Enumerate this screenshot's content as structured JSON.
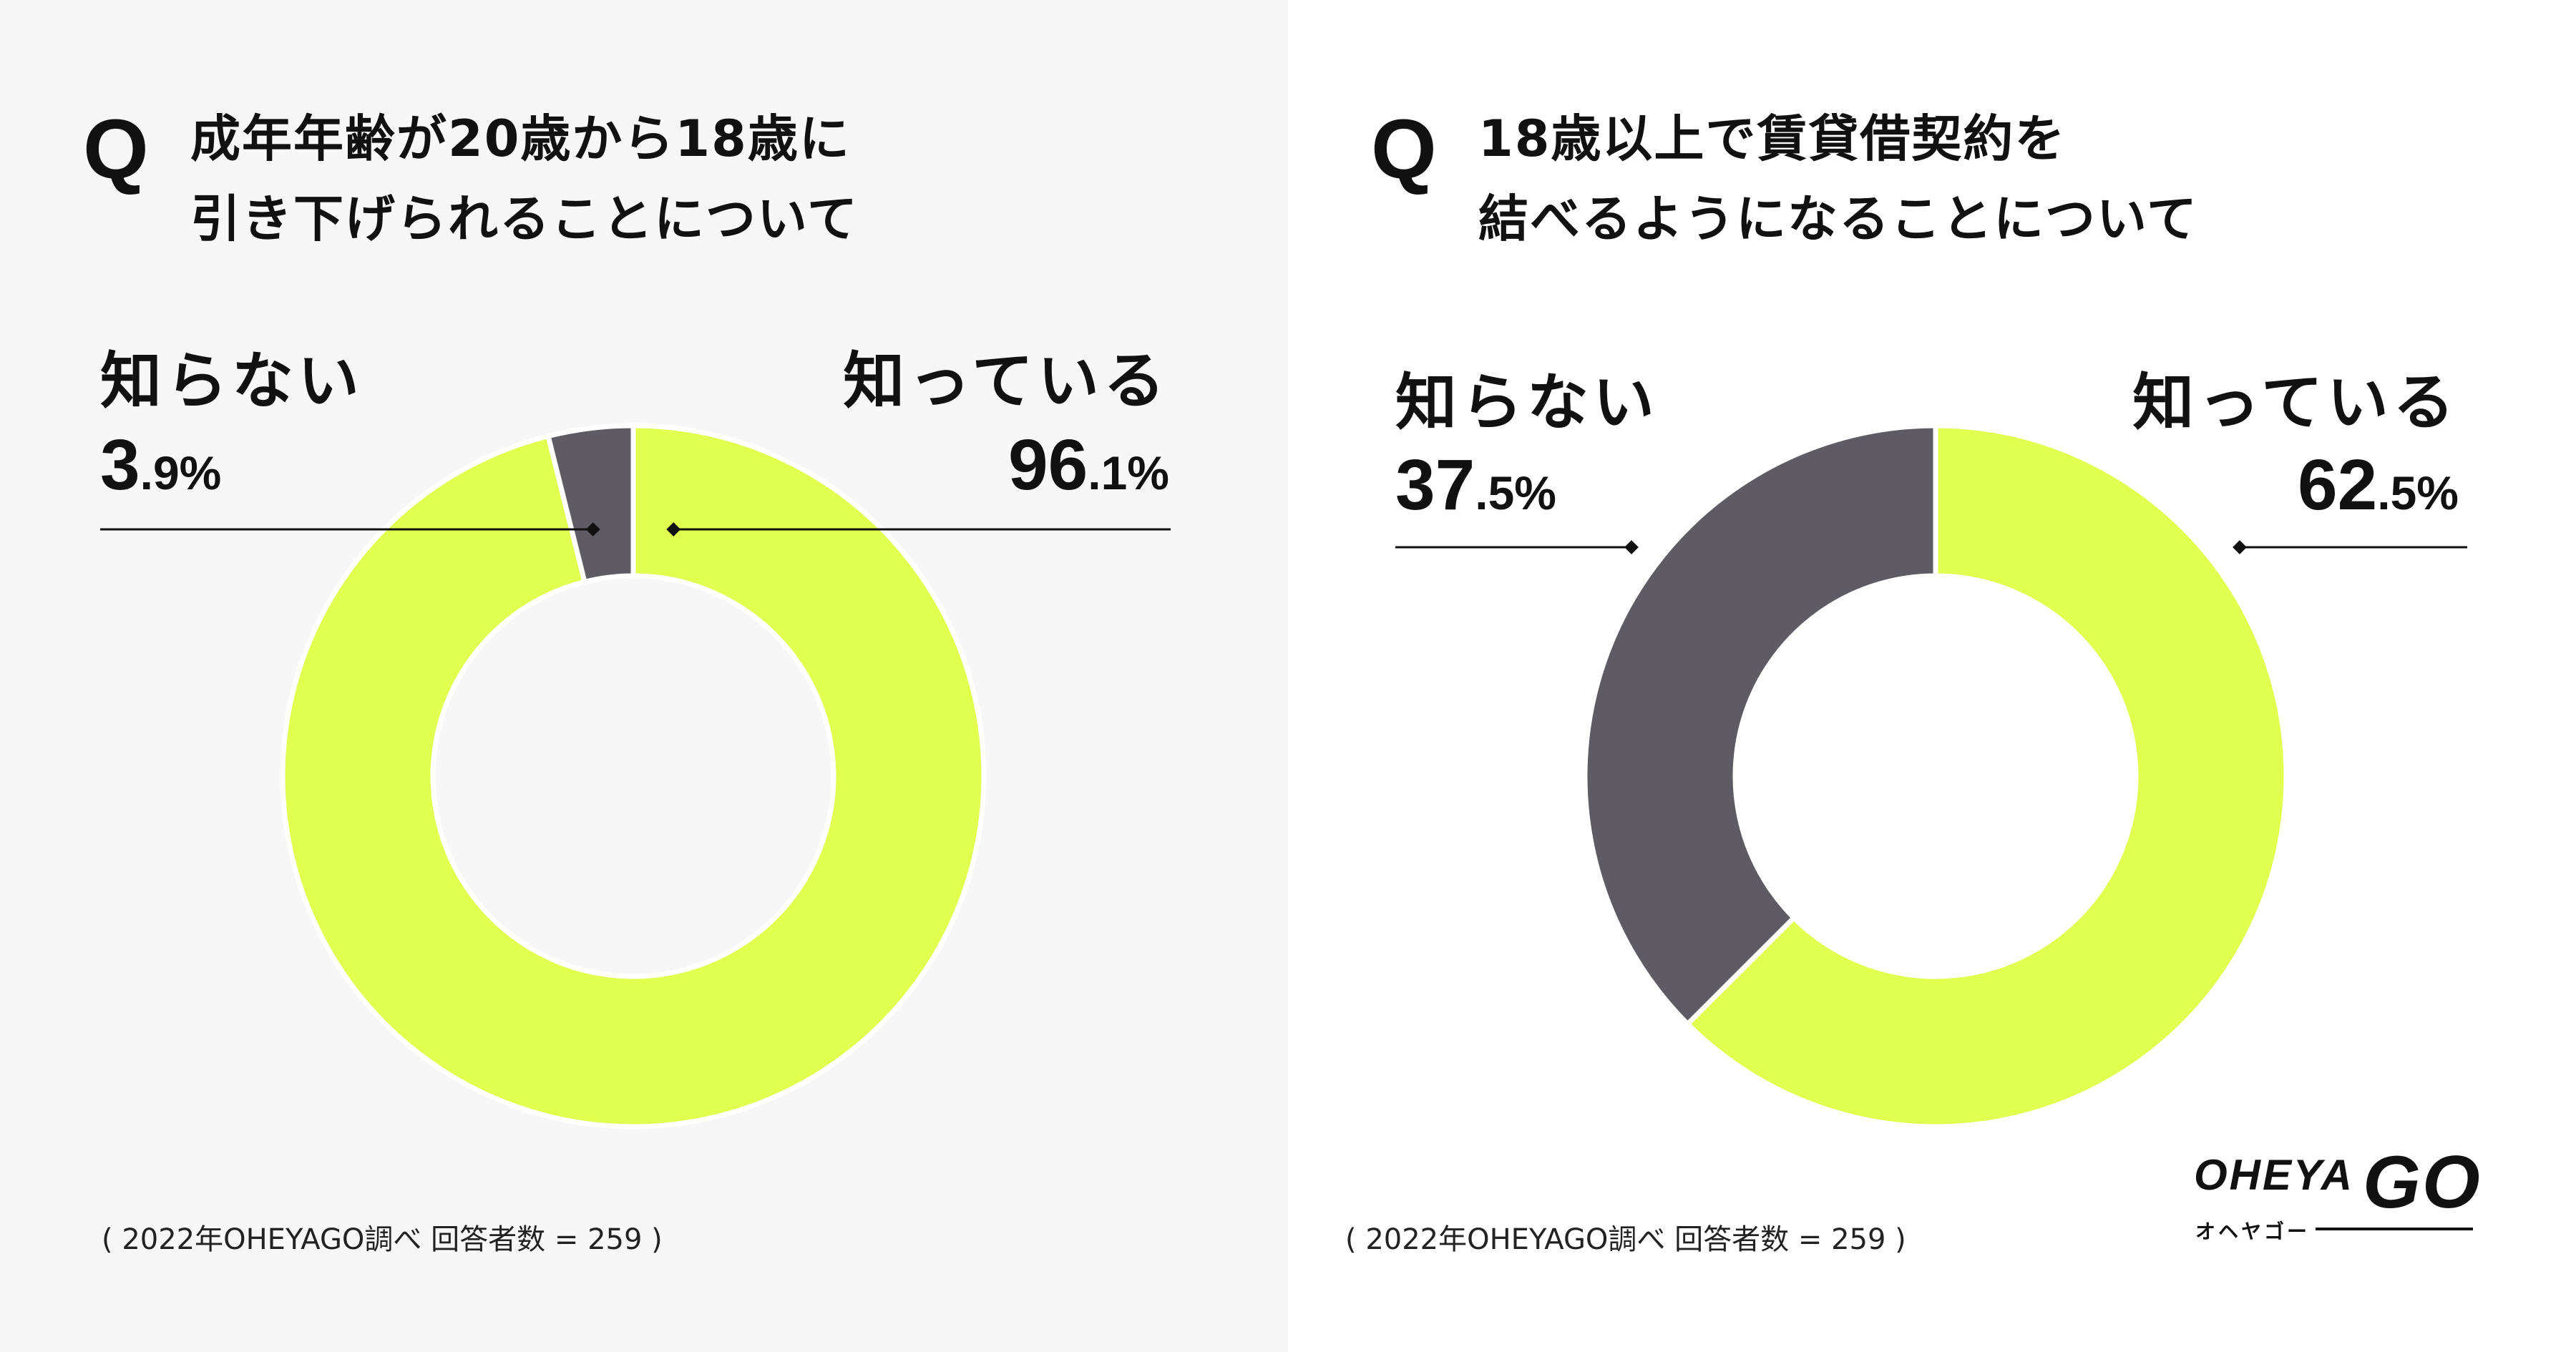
{
  "colors": {
    "known": "#e1ff4e",
    "unknown": "#5e5b64",
    "line": "#111111"
  },
  "footnote": "( 2022年OHEYAGO調べ 回答者数 = 259 )",
  "logo": {
    "main": "OHEYA",
    "go": "GO",
    "sub": "オヘヤゴー"
  },
  "questions": [
    {
      "mark": "Q",
      "line1": "成年年齢が20歳から18歳に",
      "line2": "引き下げられることについて"
    },
    {
      "mark": "Q",
      "line1": "18歳以上で賃貸借契約を",
      "line2": "結べるようになることについて"
    }
  ],
  "labels": [
    {
      "unknown_name": "知らない",
      "unknown_int": "3",
      "unknown_dec": ".9%",
      "known_name": "知っている",
      "known_int": "96",
      "known_dec": ".1%"
    },
    {
      "unknown_name": "知らない",
      "unknown_int": "37",
      "unknown_dec": ".5%",
      "known_name": "知っている",
      "known_int": "62",
      "known_dec": ".5%"
    }
  ],
  "chart_data": [
    {
      "type": "pie",
      "categories": [
        "知っている",
        "知らない"
      ],
      "values": [
        96.1,
        3.9
      ],
      "title": "成年年齢が20歳から18歳に引き下げられることについて"
    },
    {
      "type": "pie",
      "categories": [
        "知っている",
        "知らない"
      ],
      "values": [
        62.5,
        37.5
      ],
      "title": "18歳以上で賃貸借契約を結べるようになることについて"
    }
  ]
}
